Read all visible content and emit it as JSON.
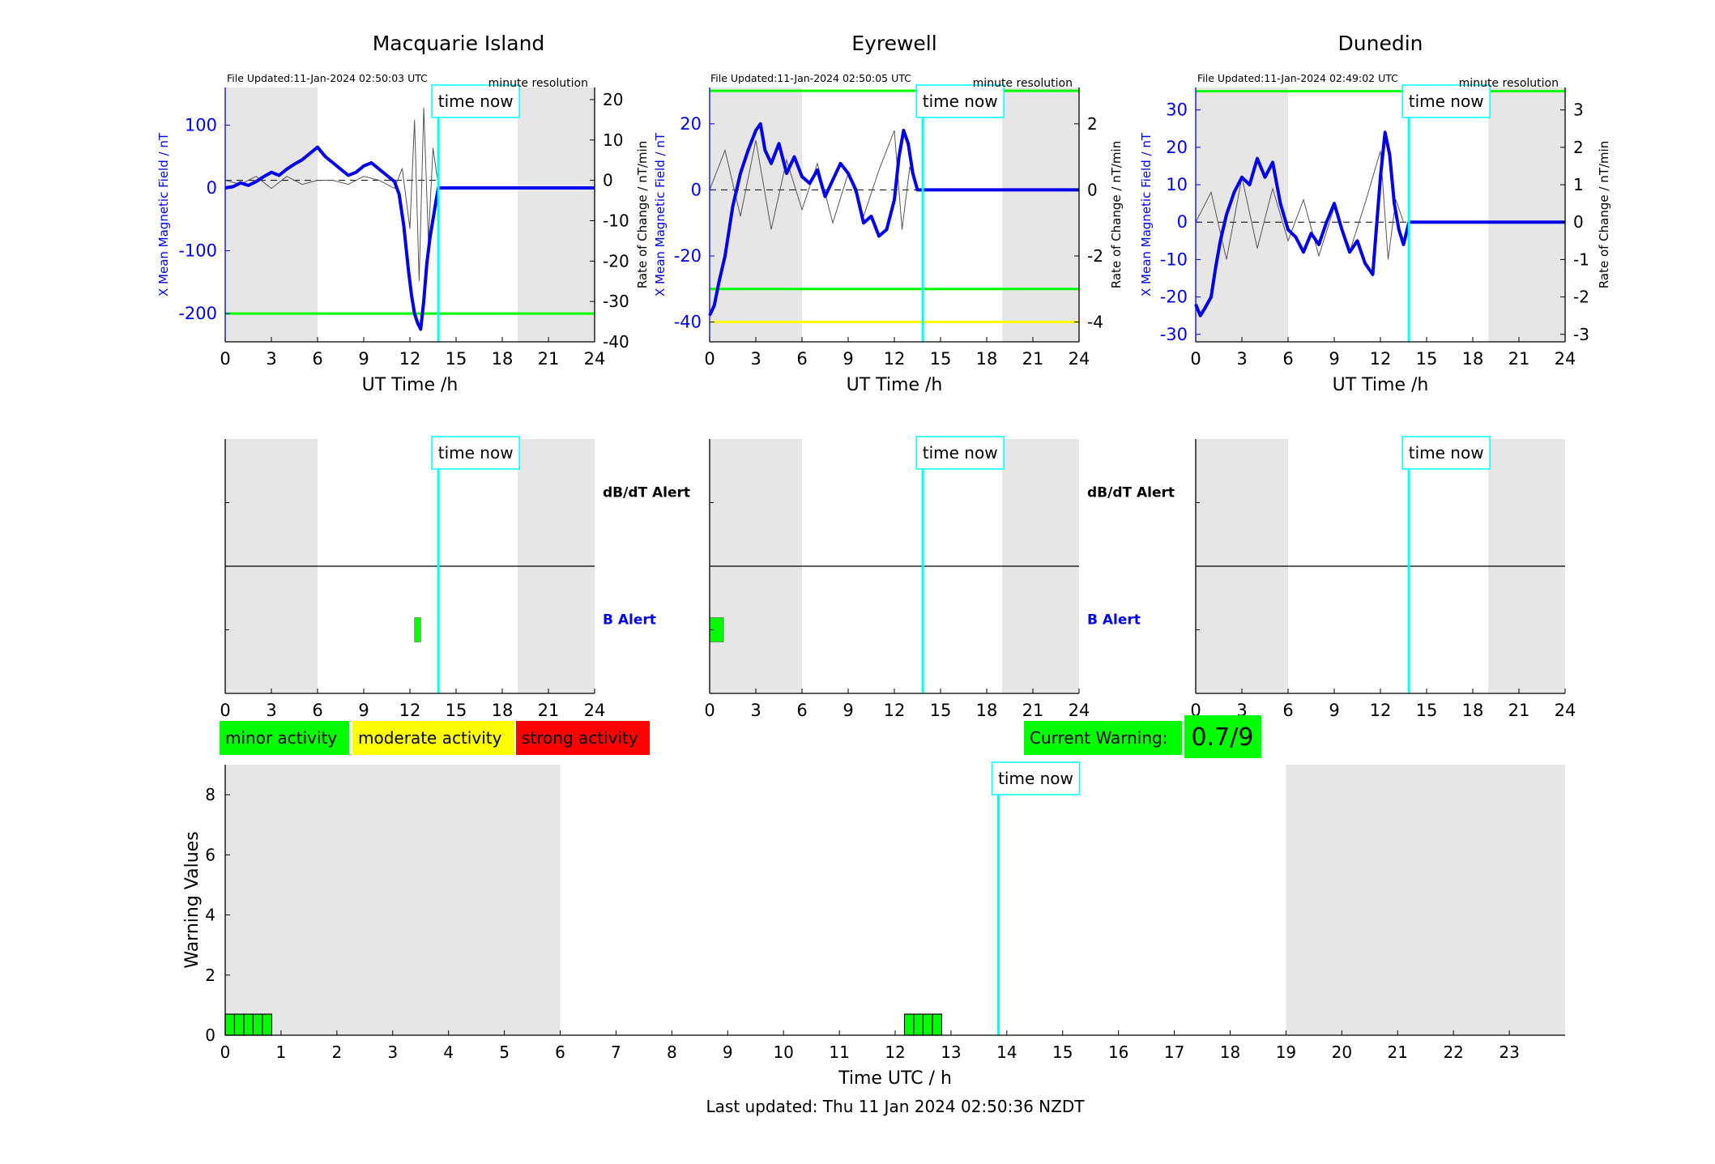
{
  "figure": {
    "last_updated": "Last updated: Thu 11 Jan 2024 02:50:36 NZDT",
    "time_now_label": "time now",
    "time_now_utc_hours": 13.85,
    "legend": [
      {
        "label": "minor activity",
        "color": "#00ff00"
      },
      {
        "label": "moderate activity",
        "color": "#ffff00"
      },
      {
        "label": "strong activity",
        "color": "#ff0000"
      }
    ],
    "current_warning": {
      "label": "Current Warning:",
      "value": "0.7/9",
      "color": "#00ff00"
    },
    "night_color": "#e6e6e6",
    "field_color": "#0000ee",
    "rate_color": "#555555",
    "time_now_color": "#00ffff"
  },
  "chart_data": [
    {
      "type": "line",
      "title": "Macquarie Island",
      "file_updated": "File Updated:11-Jan-2024 02:50:03 UTC",
      "resolution": "minute resolution",
      "xlabel": "UT Time /h",
      "ylabel_left": "X Mean Magnetic Field / nT",
      "ylabel_right": "Rate of Change / nT/min",
      "xlim": [
        0,
        24
      ],
      "xticks": [
        0,
        3,
        6,
        9,
        12,
        15,
        18,
        21,
        24
      ],
      "ylim_left": [
        -245,
        160
      ],
      "yticks_left": [
        -200,
        -100,
        0,
        100
      ],
      "ylim_right": [
        -40,
        23
      ],
      "yticks_right": [
        -40,
        -30,
        -20,
        -10,
        0,
        10,
        20
      ],
      "night_shading": [
        [
          0,
          6
        ],
        [
          19,
          24
        ]
      ],
      "thresholds_left": [
        {
          "value": -200,
          "color": "#00ff00"
        }
      ],
      "field_series": {
        "name": "X Mean Magnetic Field",
        "x": [
          0,
          0.5,
          1,
          1.5,
          2,
          2.5,
          3,
          3.5,
          4,
          4.5,
          5,
          5.5,
          6,
          6.5,
          7,
          7.5,
          8,
          8.5,
          9,
          9.5,
          10,
          10.5,
          11,
          11.3,
          11.6,
          11.9,
          12.1,
          12.3,
          12.5,
          12.7,
          12.9,
          13.1,
          13.3,
          13.5,
          13.7,
          13.85,
          24
        ],
        "y": [
          0,
          2,
          8,
          4,
          10,
          18,
          25,
          20,
          30,
          38,
          45,
          55,
          65,
          50,
          40,
          30,
          20,
          25,
          35,
          40,
          30,
          20,
          10,
          -10,
          -60,
          -130,
          -170,
          -200,
          -215,
          -225,
          -180,
          -120,
          -80,
          -50,
          -20,
          0,
          0
        ]
      },
      "rate_series": {
        "name": "Rate of Change",
        "x": [
          0,
          1,
          2,
          3,
          4,
          5,
          6,
          7,
          8,
          9,
          10,
          11,
          11.5,
          12,
          12.3,
          12.6,
          12.9,
          13.2,
          13.5,
          13.8
        ],
        "y": [
          0,
          -1,
          1,
          -2,
          1,
          -1,
          0,
          0,
          -1,
          1,
          0,
          -2,
          3,
          -12,
          15,
          -25,
          18,
          -15,
          8,
          0
        ]
      }
    },
    {
      "type": "line",
      "title": "Eyrewell",
      "file_updated": "File Updated:11-Jan-2024 02:50:05 UTC",
      "resolution": "minute resolution",
      "xlabel": "UT Time /h",
      "ylabel_left": "X Mean Magnetic Field / nT",
      "ylabel_right": "Rate of Change / nT/min",
      "xlim": [
        0,
        24
      ],
      "xticks": [
        0,
        3,
        6,
        9,
        12,
        15,
        18,
        21,
        24
      ],
      "ylim_left": [
        -46,
        31
      ],
      "yticks_left": [
        -40,
        -20,
        0,
        20
      ],
      "ylim_right": [
        -4.6,
        3.1
      ],
      "yticks_right": [
        -4,
        -2,
        0,
        2
      ],
      "night_shading": [
        [
          0,
          6
        ],
        [
          19,
          24
        ]
      ],
      "thresholds_left": [
        {
          "value": 30,
          "color": "#00ff00"
        },
        {
          "value": -30,
          "color": "#00ff00"
        },
        {
          "value": -40,
          "color": "#ffff00"
        }
      ],
      "field_series": {
        "name": "X Mean Magnetic Field",
        "x": [
          0,
          0.3,
          0.6,
          1,
          1.5,
          2,
          2.5,
          3,
          3.3,
          3.6,
          4,
          4.5,
          5,
          5.5,
          6,
          6.5,
          7,
          7.5,
          8,
          8.5,
          9,
          9.5,
          10,
          10.5,
          11,
          11.5,
          12,
          12.3,
          12.6,
          12.9,
          13.2,
          13.5,
          13.85,
          24
        ],
        "y": [
          -38,
          -35,
          -28,
          -20,
          -5,
          5,
          12,
          18,
          20,
          12,
          8,
          14,
          5,
          10,
          4,
          2,
          6,
          -2,
          3,
          8,
          5,
          0,
          -10,
          -8,
          -14,
          -12,
          -3,
          10,
          18,
          14,
          5,
          0,
          0,
          0
        ]
      },
      "rate_series": {
        "name": "Rate of Change",
        "x": [
          0,
          1,
          2,
          3,
          4,
          5,
          6,
          7,
          8,
          9,
          10,
          11,
          12,
          12.5,
          13,
          13.5
        ],
        "y": [
          0,
          1.2,
          -0.8,
          1.5,
          -1.2,
          0.9,
          -0.6,
          0.8,
          -1.0,
          0.5,
          -0.8,
          0.6,
          1.8,
          -1.2,
          0.7,
          0
        ]
      }
    },
    {
      "type": "line",
      "title": "Dunedin",
      "file_updated": "File Updated:11-Jan-2024 02:49:02 UTC",
      "resolution": "minute resolution",
      "xlabel": "UT Time /h",
      "ylabel_left": "X Mean Magnetic Field / nT",
      "ylabel_right": "Rate of Change / nT/min",
      "xlim": [
        0,
        24
      ],
      "xticks": [
        0,
        3,
        6,
        9,
        12,
        15,
        18,
        21,
        24
      ],
      "ylim_left": [
        -32,
        36
      ],
      "yticks_left": [
        -30,
        -20,
        -10,
        0,
        10,
        20,
        30
      ],
      "ylim_right": [
        -3.2,
        3.6
      ],
      "yticks_right": [
        -3,
        -2,
        -1,
        0,
        1,
        2,
        3
      ],
      "night_shading": [
        [
          0,
          6
        ],
        [
          19,
          24
        ]
      ],
      "thresholds_left": [
        {
          "value": 35,
          "color": "#00ff00"
        }
      ],
      "field_series": {
        "name": "X Mean Magnetic Field",
        "x": [
          0,
          0.3,
          0.6,
          1,
          1.3,
          1.6,
          2,
          2.5,
          3,
          3.5,
          4,
          4.5,
          5,
          5.5,
          6,
          6.5,
          7,
          7.5,
          8,
          8.5,
          9,
          9.5,
          10,
          10.5,
          11,
          11.5,
          12,
          12.3,
          12.6,
          12.9,
          13.2,
          13.5,
          13.85,
          24
        ],
        "y": [
          -22,
          -25,
          -23,
          -20,
          -12,
          -5,
          2,
          8,
          12,
          10,
          17,
          12,
          16,
          5,
          -2,
          -4,
          -8,
          -3,
          -6,
          0,
          5,
          -2,
          -8,
          -5,
          -11,
          -14,
          12,
          24,
          18,
          5,
          -2,
          -6,
          0,
          0
        ]
      },
      "rate_series": {
        "name": "Rate of Change",
        "x": [
          0,
          1,
          2,
          3,
          4,
          5,
          6,
          7,
          8,
          9,
          10,
          11,
          12,
          12.5,
          13,
          13.5
        ],
        "y": [
          0,
          0.8,
          -1.0,
          1.2,
          -0.7,
          0.9,
          -0.5,
          0.6,
          -0.9,
          0.4,
          -0.8,
          0.5,
          1.9,
          -1.0,
          0.6,
          0
        ]
      }
    },
    {
      "type": "bar",
      "title": "",
      "xlim": [
        0,
        24
      ],
      "xticks": [
        0,
        3,
        6,
        9,
        12,
        15,
        18,
        21,
        24
      ],
      "night_shading": [
        [
          0,
          6
        ],
        [
          19,
          24
        ]
      ],
      "row_labels": [
        "dB/dT Alert",
        "B Alert"
      ],
      "alerts": [
        {
          "row": "B Alert",
          "start": 12.3,
          "end": 12.7,
          "level": "minor activity"
        }
      ]
    },
    {
      "type": "bar",
      "title": "",
      "xlim": [
        0,
        24
      ],
      "xticks": [
        0,
        3,
        6,
        9,
        12,
        15,
        18,
        21,
        24
      ],
      "night_shading": [
        [
          0,
          6
        ],
        [
          19,
          24
        ]
      ],
      "row_labels": [
        "dB/dT Alert",
        "B Alert"
      ],
      "alerts": [
        {
          "row": "B Alert",
          "start": 0,
          "end": 0.9,
          "level": "minor activity"
        }
      ]
    },
    {
      "type": "bar",
      "title": "",
      "xlim": [
        0,
        24
      ],
      "xticks": [
        0,
        3,
        6,
        9,
        12,
        15,
        18,
        21,
        24
      ],
      "night_shading": [
        [
          0,
          6
        ],
        [
          19,
          24
        ]
      ],
      "row_labels": [],
      "alerts": []
    },
    {
      "type": "bar",
      "title": "",
      "xlabel": "Time UTC / h",
      "ylabel": "Warning Values",
      "xlim": [
        0,
        24
      ],
      "xticks": [
        0,
        1,
        2,
        3,
        4,
        5,
        6,
        7,
        8,
        9,
        10,
        11,
        12,
        13,
        14,
        15,
        16,
        17,
        18,
        19,
        20,
        21,
        22,
        23
      ],
      "ylim": [
        0,
        9
      ],
      "yticks": [
        0,
        2,
        4,
        6,
        8
      ],
      "night_shading": [
        [
          0,
          6
        ],
        [
          19,
          24
        ]
      ],
      "x": [
        0.083,
        0.25,
        0.417,
        0.583,
        0.75,
        12.25,
        12.417,
        12.583,
        12.75
      ],
      "values": [
        0.7,
        0.7,
        0.7,
        0.7,
        0.7,
        0.7,
        0.7,
        0.7,
        0.7
      ]
    }
  ]
}
